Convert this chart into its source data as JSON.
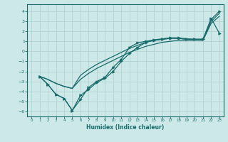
{
  "xlabel": "Humidex (Indice chaleur)",
  "xlim": [
    -0.5,
    23.5
  ],
  "ylim": [
    -6.5,
    4.7
  ],
  "xticks": [
    0,
    1,
    2,
    3,
    4,
    5,
    6,
    7,
    8,
    9,
    10,
    11,
    12,
    13,
    14,
    15,
    16,
    17,
    18,
    19,
    20,
    21,
    22,
    23
  ],
  "yticks": [
    -6,
    -5,
    -4,
    -3,
    -2,
    -1,
    0,
    1,
    2,
    3,
    4
  ],
  "bg_color": "#cce8e8",
  "grid_color": "#b0cccc",
  "line_color": "#1a6b6b",
  "line1_x": [
    1,
    2,
    3,
    4,
    5,
    6,
    7,
    8,
    9,
    10,
    11,
    12,
    13,
    14,
    15,
    16,
    17,
    18,
    19,
    20,
    21,
    22,
    23
  ],
  "line1_y": [
    -2.5,
    -3.3,
    -4.3,
    -4.7,
    -5.9,
    -4.4,
    -3.8,
    -3.1,
    -2.7,
    -2.0,
    -1.0,
    -0.2,
    0.4,
    0.9,
    1.1,
    1.2,
    1.3,
    1.3,
    1.2,
    1.2,
    1.2,
    3.3,
    1.8
  ],
  "line2_x": [
    1,
    2,
    3,
    4,
    5,
    6,
    7,
    8,
    9,
    10,
    11,
    12,
    13,
    14,
    15,
    16,
    17,
    18,
    19,
    20,
    21,
    22,
    23
  ],
  "line2_y": [
    -2.5,
    -3.3,
    -4.3,
    -4.7,
    -5.9,
    -4.8,
    -3.6,
    -3.0,
    -2.6,
    -1.6,
    -0.8,
    0.4,
    0.85,
    1.0,
    1.15,
    1.25,
    1.35,
    1.35,
    1.25,
    1.2,
    1.2,
    3.2,
    4.0
  ],
  "line3_x": [
    1,
    2,
    3,
    4,
    5,
    6,
    7,
    8,
    9,
    10,
    11,
    12,
    13,
    14,
    15,
    16,
    17,
    18,
    19,
    20,
    21,
    22,
    23
  ],
  "line3_y": [
    -2.5,
    -2.8,
    -3.2,
    -3.5,
    -3.7,
    -2.8,
    -2.2,
    -1.7,
    -1.3,
    -0.9,
    -0.5,
    -0.1,
    0.2,
    0.5,
    0.7,
    0.9,
    1.0,
    1.1,
    1.1,
    1.1,
    1.1,
    2.8,
    3.5
  ],
  "line4_x": [
    1,
    2,
    3,
    4,
    5,
    6,
    7,
    8,
    9,
    10,
    11,
    12,
    13,
    14,
    15,
    16,
    17,
    18,
    19,
    20,
    21,
    22,
    23
  ],
  "line4_y": [
    -2.5,
    -2.8,
    -3.2,
    -3.5,
    -3.7,
    -2.4,
    -1.8,
    -1.3,
    -0.9,
    -0.5,
    -0.1,
    0.3,
    0.6,
    0.9,
    1.1,
    1.2,
    1.3,
    1.3,
    1.2,
    1.2,
    1.2,
    3.0,
    3.8
  ]
}
